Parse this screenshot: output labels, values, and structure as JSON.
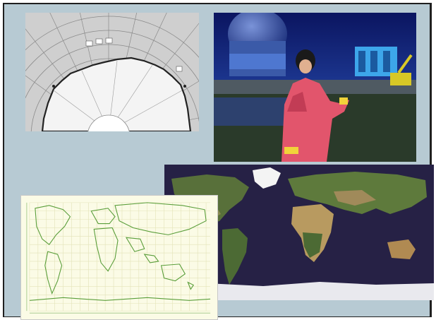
{
  "panels": [
    {
      "id": "antarctic-chart",
      "kind": "polar-grid-map"
    },
    {
      "id": "field-photo",
      "kind": "photograph"
    },
    {
      "id": "satellite-map",
      "kind": "world-satellite-image"
    },
    {
      "id": "grid-map",
      "kind": "world-outline-grid"
    }
  ],
  "colors": {
    "frame_background": "#b7cad3",
    "frame_border": "#1f1f1f",
    "ocean_dark": "#262145",
    "grid_green": "#5a9e3a",
    "grid_background": "#fbfbe6"
  }
}
